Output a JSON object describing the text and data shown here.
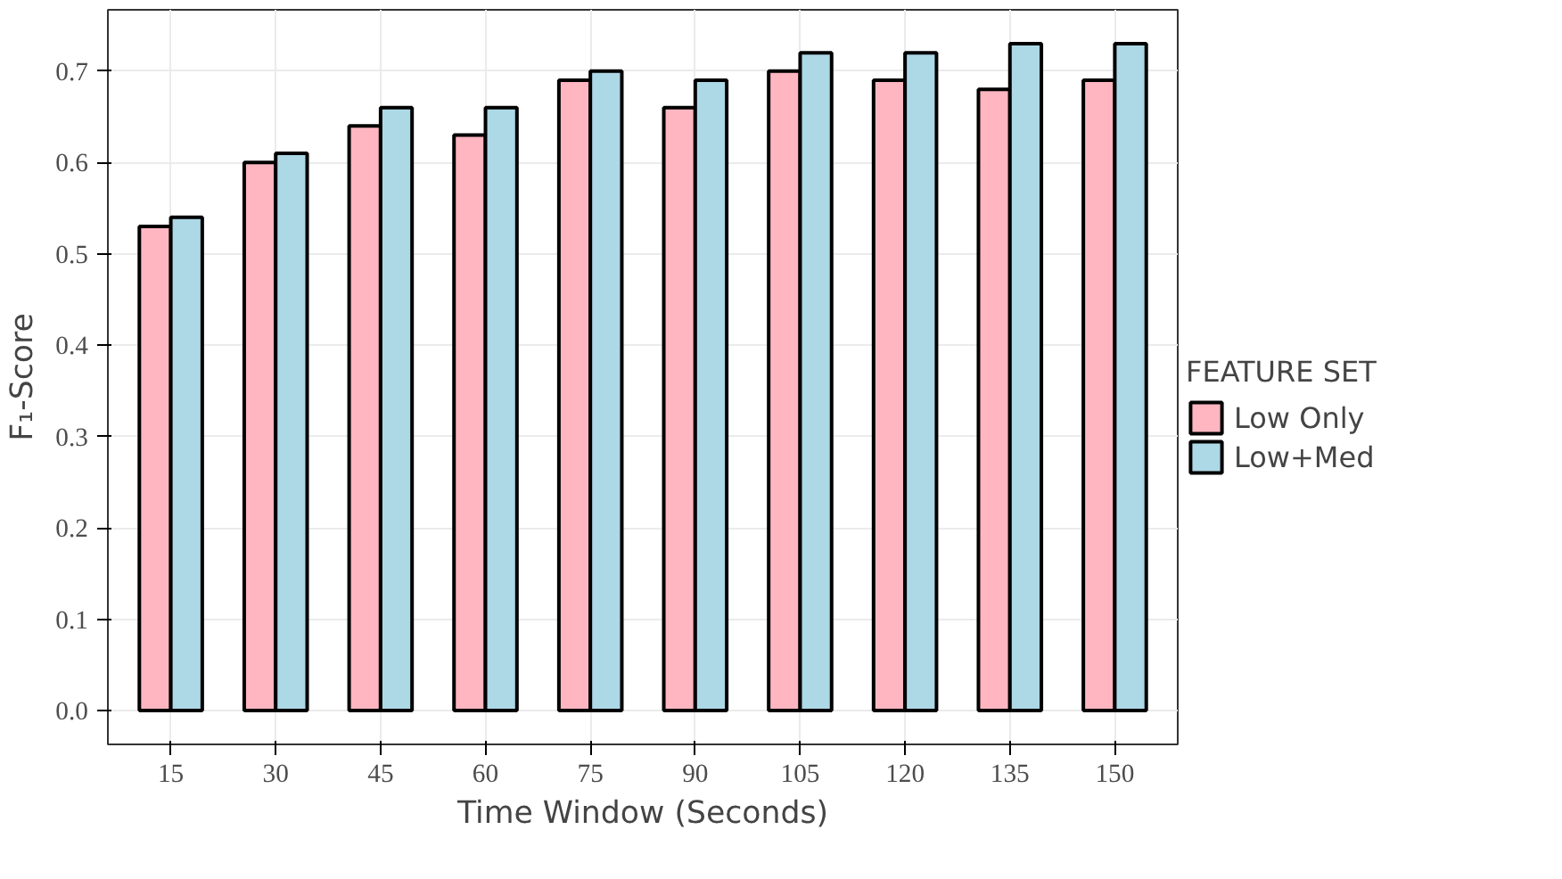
{
  "chart_data": {
    "type": "bar",
    "xlabel": "Time Window (Seconds)",
    "ylabel": "F₁-Score",
    "legend_title": "FEATURE SET",
    "categories": [
      "15",
      "30",
      "45",
      "60",
      "75",
      "90",
      "105",
      "120",
      "135",
      "150"
    ],
    "series": [
      {
        "name": "Low Only",
        "color": "#ffb6c1",
        "values": [
          0.53,
          0.6,
          0.64,
          0.63,
          0.69,
          0.66,
          0.7,
          0.69,
          0.68,
          0.69
        ]
      },
      {
        "name": "Low+Med",
        "color": "#add8e6",
        "values": [
          0.54,
          0.61,
          0.66,
          0.66,
          0.7,
          0.69,
          0.72,
          0.72,
          0.73,
          0.73
        ]
      }
    ],
    "ylim": [
      -0.037,
      0.767
    ],
    "yticks": [
      {
        "value": 0,
        "label": "0.0"
      },
      0.1,
      0.2,
      0.3,
      0.4,
      0.5,
      0.6,
      0.7
    ],
    "grid": true,
    "legend": "right"
  }
}
